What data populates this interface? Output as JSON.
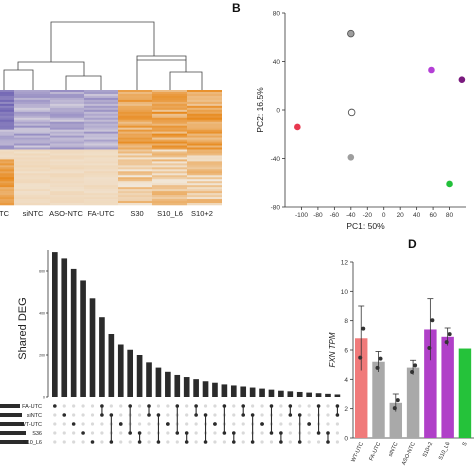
{
  "panels": {
    "B": "B",
    "D": "D"
  },
  "heatmap": {
    "columns": [
      "TC",
      "siNTC",
      "ASO-NTC",
      "FA-UTC",
      "S30",
      "S10_L6",
      "S10+2"
    ],
    "colors": {
      "low": "#6f64b3",
      "mid": "#f2efe9",
      "high": "#e88a1e"
    }
  },
  "chart_data": [
    {
      "id": "pca",
      "type": "scatter",
      "xlabel": "PC1: 50%",
      "ylabel": "PC2: 16.5%",
      "xlim": [
        -120,
        100
      ],
      "ylim": [
        -80,
        80
      ],
      "xticks": [
        -100,
        -80,
        -60,
        -40,
        -20,
        0,
        20,
        40,
        60,
        80
      ],
      "yticks": [
        -80,
        -40,
        0,
        40,
        80
      ],
      "points": [
        {
          "x": -40,
          "y": 63,
          "color": "#9e9e9e",
          "hollow": true
        },
        {
          "x": -39,
          "y": -2,
          "color": "#ffffff",
          "hollow": true
        },
        {
          "x": -40,
          "y": -39,
          "color": "#9e9e9e",
          "hollow": false
        },
        {
          "x": -105,
          "y": -14,
          "color": "#e8384f",
          "hollow": false
        },
        {
          "x": 58,
          "y": 33,
          "color": "#b43fd6",
          "hollow": false
        },
        {
          "x": 95,
          "y": 25,
          "color": "#7a1a7e",
          "hollow": false
        },
        {
          "x": 80,
          "y": -61,
          "color": "#22c03a",
          "hollow": false
        }
      ]
    },
    {
      "id": "upset",
      "type": "bar",
      "ylabel": "Shared DEG",
      "ylim": [
        0,
        700
      ],
      "yticks": [
        0,
        200,
        400,
        600
      ],
      "values": [
        690,
        660,
        610,
        555,
        470,
        380,
        300,
        250,
        225,
        200,
        165,
        140,
        120,
        105,
        95,
        85,
        75,
        68,
        60,
        55,
        50,
        45,
        40,
        35,
        30,
        27,
        24,
        21,
        18,
        15,
        12
      ],
      "set_labels": [
        "FA-UTC",
        "siNTC",
        "WT-UTC",
        "S36",
        "S10_L6"
      ]
    },
    {
      "id": "fxn",
      "type": "bar",
      "ylabel": "FXN TPM",
      "ylim": [
        0,
        12
      ],
      "yticks": [
        0,
        2,
        4,
        6,
        8,
        10,
        12
      ],
      "categories": [
        "WT-UTC",
        "FA-UTC",
        "siNTC",
        "ASO-NTC",
        "S10+2",
        "S10_L6",
        "S"
      ],
      "values": [
        6.8,
        5.2,
        2.4,
        4.8,
        7.4,
        6.9,
        6.1
      ],
      "errors": [
        2.2,
        0.7,
        0.6,
        0.5,
        2.1,
        0.6,
        0.0
      ],
      "colors": [
        "#f07a7a",
        "#a9a9a9",
        "#a9a9a9",
        "#a9a9a9",
        "#b040c8",
        "#b040c8",
        "#25c23a"
      ]
    }
  ]
}
